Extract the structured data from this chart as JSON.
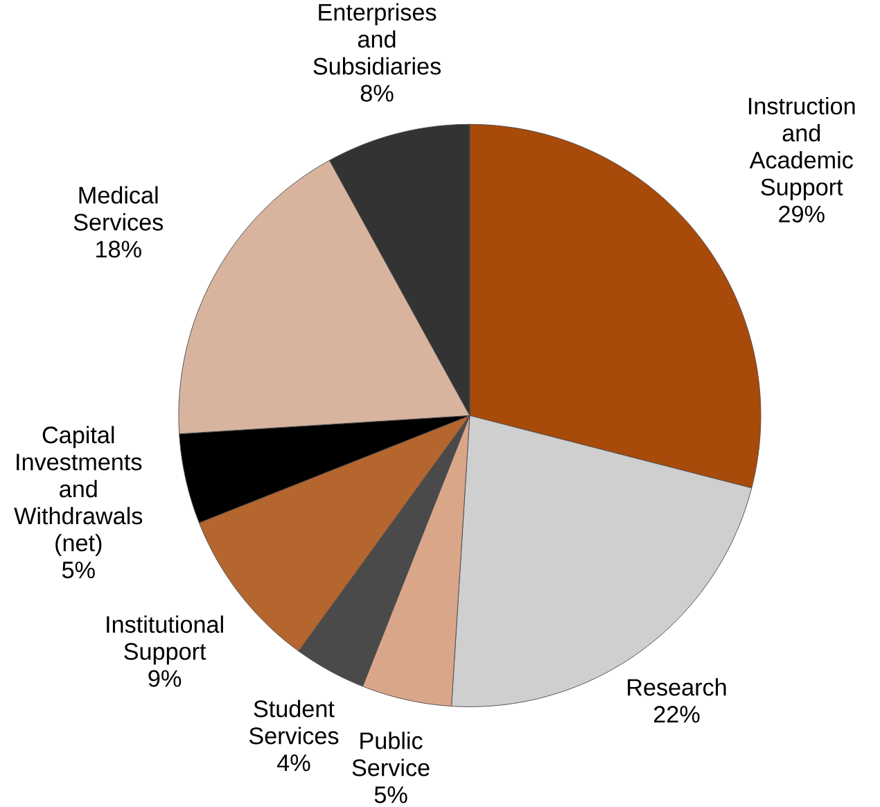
{
  "chart_data": {
    "type": "pie",
    "categories": [
      "Instruction and Academic Support",
      "Research",
      "Public Service",
      "Student Services",
      "Institutional Support",
      "Capital Investments and Withdrawals (net)",
      "Medical Services",
      "Enterprises and Subsidiaries"
    ],
    "values": [
      29,
      22,
      5,
      4,
      9,
      5,
      18,
      8
    ],
    "value_labels": [
      "29%",
      "22%",
      "5%",
      "4%",
      "9%",
      "5%",
      "18%",
      "8%"
    ],
    "colors": [
      "#a84a0a",
      "#cfcfcf",
      "#d9a68a",
      "#4a4a4a",
      "#b5652e",
      "#000000",
      "#d8b49e",
      "#333333"
    ]
  }
}
